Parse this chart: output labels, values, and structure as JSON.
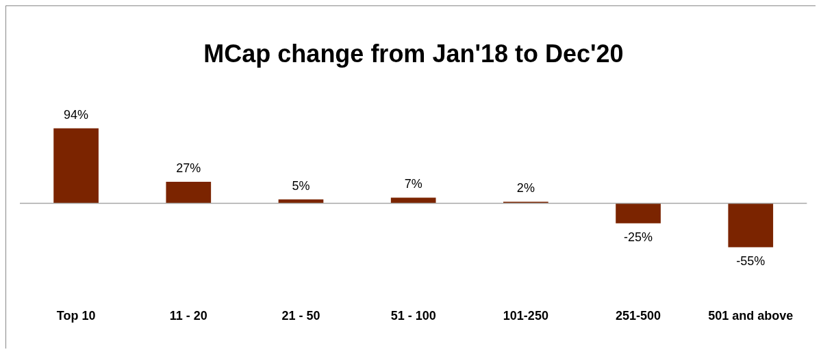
{
  "chart_data": {
    "type": "bar",
    "title": "MCap change from Jan'18 to Dec'20",
    "categories": [
      "Top 10",
      "11 - 20",
      "21 - 50",
      "51 - 100",
      "101-250",
      "251-500",
      "501 and above"
    ],
    "values": [
      94,
      27,
      5,
      7,
      2,
      -25,
      -55
    ],
    "value_labels": [
      "94%",
      "27%",
      "5%",
      "7%",
      "2%",
      "-25%",
      "-55%"
    ],
    "color": "#7b2400"
  }
}
